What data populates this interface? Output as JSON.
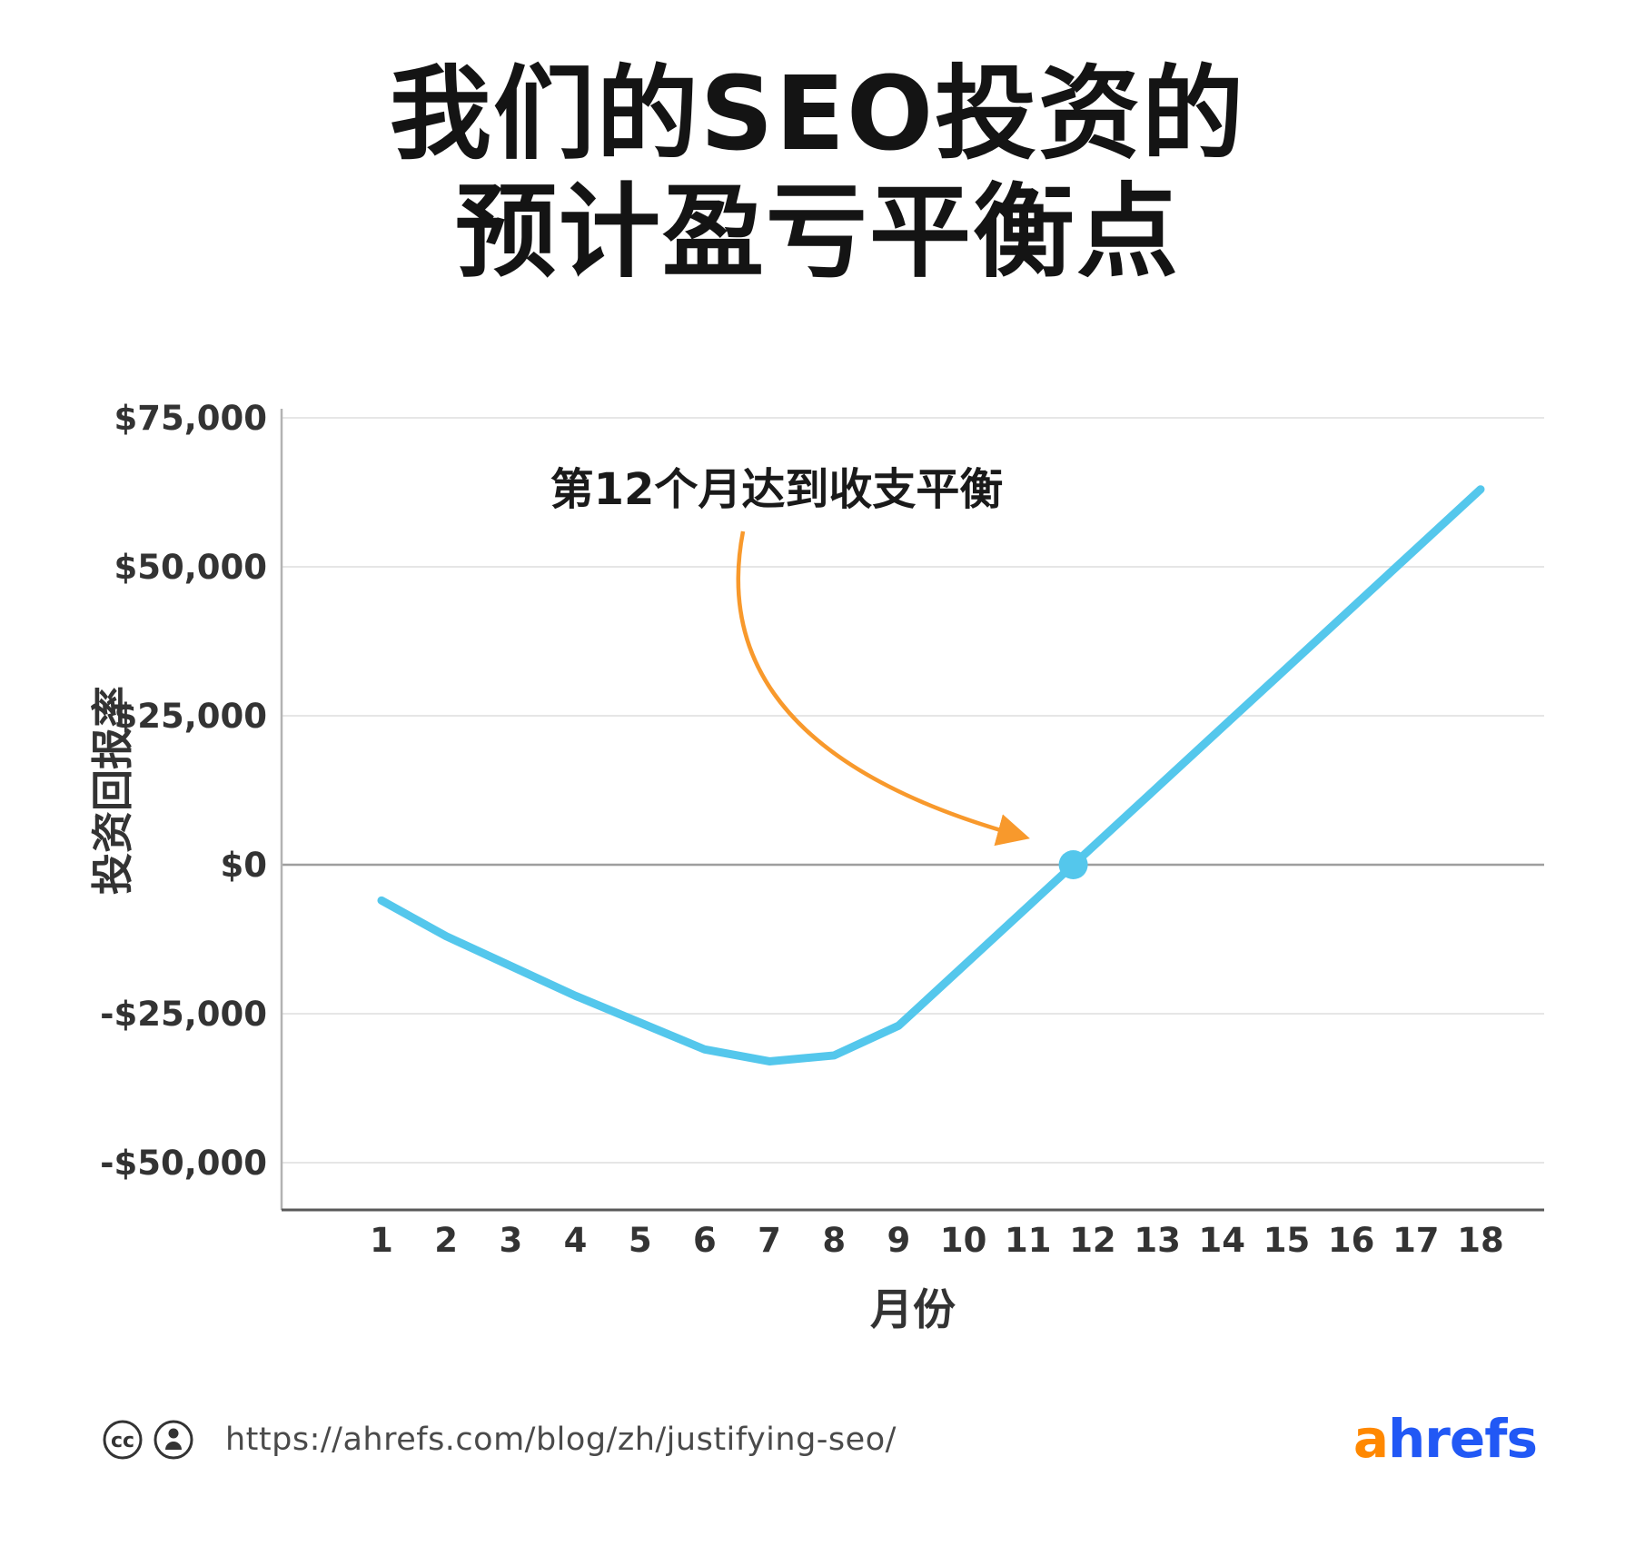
{
  "title": {
    "line1": "我们的SEO投资的",
    "line2": "预计盈亏平衡点"
  },
  "chart_data": {
    "type": "line",
    "x": [
      1,
      2,
      3,
      4,
      5,
      6,
      7,
      8,
      9,
      10,
      11,
      12,
      13,
      14,
      15,
      16,
      17,
      18
    ],
    "series": [
      {
        "name": "投资回报率",
        "values": [
          -6000,
          -12000,
          -17000,
          -22000,
          -26500,
          -31000,
          -33000,
          -32000,
          -27000,
          -17000,
          -7000,
          3000,
          13000,
          23000,
          33000,
          43000,
          53000,
          63000
        ]
      }
    ],
    "title": "我们的SEO投资的预计盈亏平衡点",
    "xlabel": "月份",
    "ylabel": "投资回报率",
    "ylim": [
      -50000,
      75000
    ],
    "grid": true,
    "legend": "none",
    "line_color": "#54c7ec",
    "annotation": {
      "text": "第12个月达到收支平衡",
      "target_x": 11.7,
      "target_y": 0,
      "color": "#f8992c"
    },
    "yticks": [
      {
        "value": 75000,
        "label": "$75,000"
      },
      {
        "value": 50000,
        "label": "$50,000"
      },
      {
        "value": 25000,
        "label": "$25,000"
      },
      {
        "value": 0,
        "label": "$0"
      },
      {
        "value": -25000,
        "label": "-$25,000"
      },
      {
        "value": -50000,
        "label": "-$50,000"
      }
    ]
  },
  "footer": {
    "license": {
      "icons": [
        "cc-icon",
        "by-icon"
      ]
    },
    "url": "https://ahrefs.com/blog/zh/justifying-seo/",
    "logo": {
      "part1": "a",
      "part2": "hrefs",
      "part1_color": "#ff8800",
      "part2_color": "#2158f5"
    }
  }
}
